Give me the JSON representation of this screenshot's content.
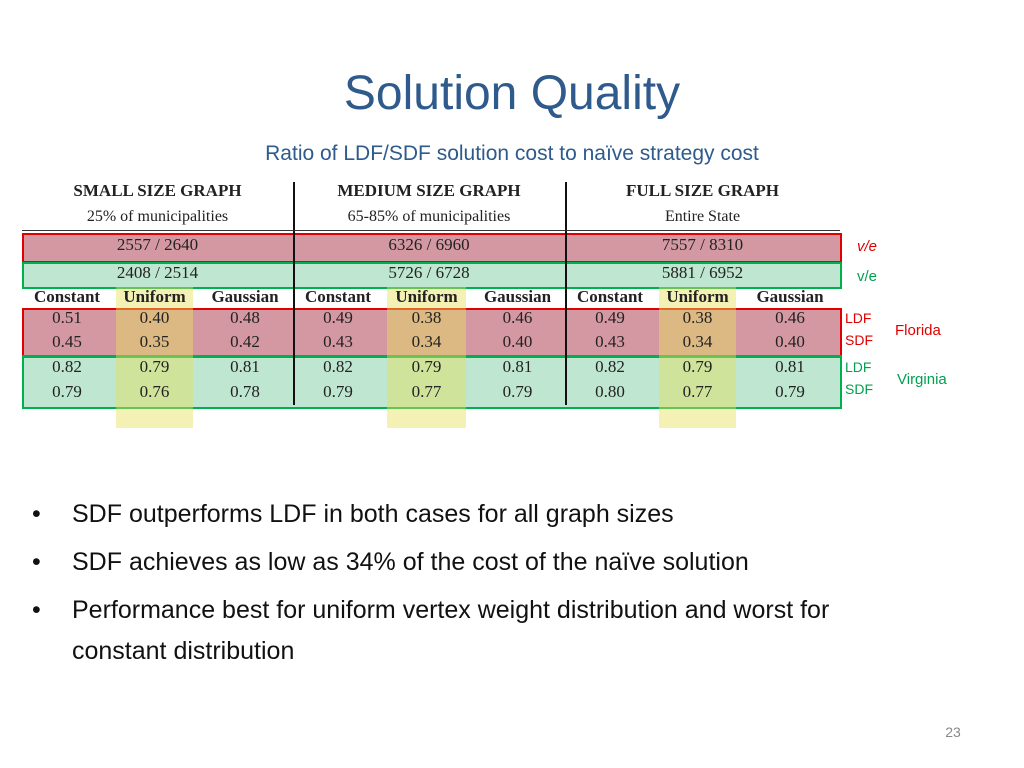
{
  "title": "Solution Quality",
  "subtitle": "Ratio of LDF/SDF solution cost to naïve strategy cost",
  "table": {
    "groups": [
      {
        "name": "SMALL SIZE GRAPH",
        "detail": "25% of municipalities"
      },
      {
        "name": "MEDIUM SIZE GRAPH",
        "detail": "65-85% of municipalities"
      },
      {
        "name": "FULL SIZE GRAPH",
        "detail": "Entire State"
      }
    ],
    "ve_rows": [
      [
        "2557 / 2640",
        "6326 / 6960",
        "7557 / 8310"
      ],
      [
        "2408 / 2514",
        "5726 / 6728",
        "5881 / 6952"
      ]
    ],
    "columns": [
      "Constant",
      "Uniform",
      "Gaussian",
      "Constant",
      "Uniform",
      "Gaussian",
      "Constant",
      "Uniform",
      "Gaussian"
    ],
    "rows": [
      [
        "0.51",
        "0.40",
        "0.48",
        "0.49",
        "0.38",
        "0.46",
        "0.49",
        "0.38",
        "0.46"
      ],
      [
        "0.45",
        "0.35",
        "0.42",
        "0.43",
        "0.34",
        "0.40",
        "0.43",
        "0.34",
        "0.40"
      ],
      [
        "0.82",
        "0.79",
        "0.81",
        "0.82",
        "0.79",
        "0.81",
        "0.82",
        "0.79",
        "0.81"
      ],
      [
        "0.79",
        "0.76",
        "0.78",
        "0.79",
        "0.77",
        "0.79",
        "0.80",
        "0.77",
        "0.79"
      ]
    ]
  },
  "annotations": {
    "ve_labels": [
      "v/e",
      "v/e"
    ],
    "florida": {
      "labels": [
        "LDF",
        "SDF"
      ],
      "name": "Florida"
    },
    "virginia": {
      "labels": [
        "LDF",
        "SDF"
      ],
      "name": "Virginia"
    }
  },
  "bullets": [
    "SDF outperforms LDF in both cases for all graph sizes",
    "SDF achieves as low as 34% of the cost of the naïve solution",
    "Performance best for uniform vertex weight distribution and worst for constant distribution"
  ],
  "page_number": "23"
}
